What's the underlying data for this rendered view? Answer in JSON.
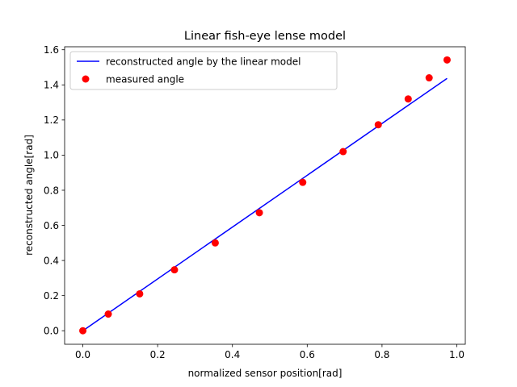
{
  "chart_data": {
    "type": "scatter",
    "title": "Linear fish-eye lense model",
    "xlabel": "normalized sensor position[rad]",
    "ylabel": "reconstructed angle[rad]",
    "xlim": [
      -0.0487,
      1.0227
    ],
    "ylim": [
      -0.077,
      1.617
    ],
    "xticks": [
      0.0,
      0.2,
      0.4,
      0.6,
      0.8,
      1.0
    ],
    "xtick_labels": [
      "0.0",
      "0.2",
      "0.4",
      "0.6",
      "0.8",
      "1.0"
    ],
    "yticks": [
      0.0,
      0.2,
      0.4,
      0.6,
      0.8,
      1.0,
      1.2,
      1.4,
      1.6
    ],
    "ytick_labels": [
      "0.0",
      "0.2",
      "0.4",
      "0.6",
      "0.8",
      "1.0",
      "1.2",
      "1.4",
      "1.6"
    ],
    "grid": false,
    "legend_position": "upper-left",
    "series": [
      {
        "name": "reconstructed angle by the linear model",
        "kind": "line",
        "color": "#0000ff",
        "x": [
          0.0,
          0.974
        ],
        "y": [
          0.0,
          1.437
        ]
      },
      {
        "name": "measured angle",
        "kind": "scatter",
        "color": "#ff0000",
        "x": [
          0.0,
          0.068,
          0.152,
          0.245,
          0.354,
          0.472,
          0.588,
          0.696,
          0.79,
          0.87,
          0.926,
          0.974
        ],
        "y": [
          0.0,
          0.095,
          0.21,
          0.347,
          0.5,
          0.672,
          0.845,
          1.02,
          1.173,
          1.32,
          1.44,
          1.542
        ]
      }
    ]
  }
}
